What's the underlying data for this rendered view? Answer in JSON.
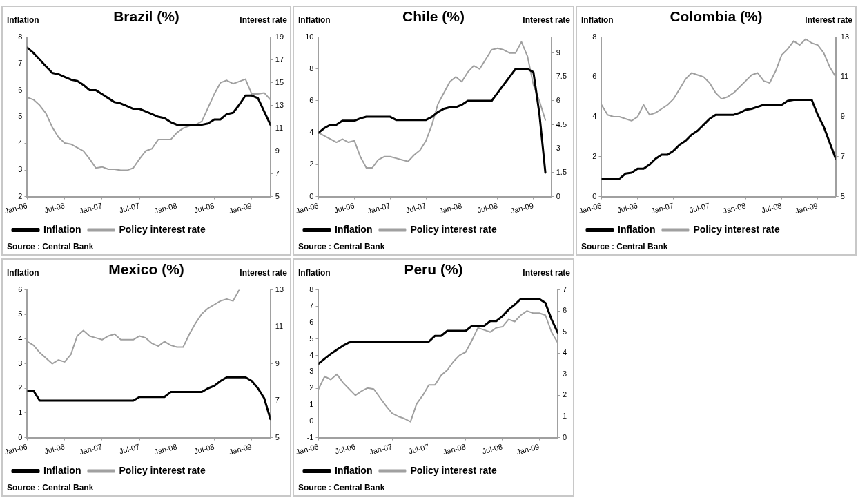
{
  "chart_data": [
    {
      "type": "line",
      "title": "Brazil (%)",
      "ylabel": "Inflation",
      "y2label": "Interest rate",
      "annotations": [
        "Source : Central Bank"
      ],
      "legend": "bottom",
      "marker": "none",
      "line_style": "solid",
      "grid": false,
      "xlim": [
        "2006-01",
        "2009-04"
      ],
      "xticks": [
        {
          "value": "2006-01",
          "label": "Jan-06"
        },
        {
          "value": "2006-07",
          "label": "Jul-06"
        },
        {
          "value": "2007-01",
          "label": "Jan-07"
        },
        {
          "value": "2007-07",
          "label": "Jul-07"
        },
        {
          "value": "2008-01",
          "label": "Jan-08"
        },
        {
          "value": "2008-07",
          "label": "Jul-08"
        },
        {
          "value": "2009-01",
          "label": "Jan-09"
        }
      ],
      "ylim": [
        2,
        8
      ],
      "yticks": [
        2,
        3,
        4,
        5,
        6,
        7,
        8
      ],
      "y2lim": [
        5,
        19
      ],
      "y2ticks": [
        5,
        7,
        9,
        11,
        13,
        15,
        17,
        19
      ],
      "x": [
        "2006-01",
        "2006-02",
        "2006-03",
        "2006-04",
        "2006-05",
        "2006-06",
        "2006-07",
        "2006-08",
        "2006-09",
        "2006-10",
        "2006-11",
        "2006-12",
        "2007-01",
        "2007-02",
        "2007-03",
        "2007-04",
        "2007-05",
        "2007-06",
        "2007-07",
        "2007-08",
        "2007-09",
        "2007-10",
        "2007-11",
        "2007-12",
        "2008-01",
        "2008-02",
        "2008-03",
        "2008-04",
        "2008-05",
        "2008-06",
        "2008-07",
        "2008-08",
        "2008-09",
        "2008-10",
        "2008-11",
        "2008-12",
        "2009-01",
        "2009-02",
        "2009-03",
        "2009-04"
      ],
      "series": [
        {
          "name": "Inflation",
          "color": "#000000",
          "values": [
            7.6,
            7.4,
            7.15,
            6.9,
            6.65,
            6.6,
            6.5,
            6.4,
            6.35,
            6.2,
            6.0,
            6.0,
            5.85,
            5.7,
            5.55,
            5.5,
            5.4,
            5.3,
            5.3,
            5.2,
            5.1,
            5.0,
            4.95,
            4.8,
            4.7,
            4.7,
            4.7,
            4.7,
            4.7,
            4.75,
            4.9,
            4.9,
            5.1,
            5.15,
            5.45,
            5.8,
            5.8,
            5.7,
            5.2,
            4.7
          ]
        },
        {
          "name": "Policy interest rate",
          "color": "#a0a0a0",
          "axis": "y2",
          "values": [
            13.7,
            13.5,
            13.0,
            12.3,
            11.1,
            10.2,
            9.7,
            9.6,
            9.3,
            9.0,
            8.3,
            7.5,
            7.6,
            7.4,
            7.4,
            7.3,
            7.3,
            7.5,
            8.3,
            9.0,
            9.2,
            10.0,
            10.0,
            10.0,
            10.6,
            11.0,
            11.2,
            11.3,
            11.6,
            12.8,
            14.0,
            15.0,
            15.2,
            14.9,
            15.1,
            15.3,
            14.0,
            14.0,
            14.1,
            13.5
          ]
        }
      ]
    },
    {
      "type": "line",
      "title": "Chile (%)",
      "ylabel": "Inflation",
      "y2label": "Interest rate",
      "annotations": [
        "Source : Central Bank"
      ],
      "legend": "bottom",
      "marker": "none",
      "line_style": "solid",
      "grid": false,
      "xlim": [
        "2006-01",
        "2009-04"
      ],
      "xticks": [
        {
          "value": "2006-01",
          "label": "Jan-06"
        },
        {
          "value": "2006-07",
          "label": "Jul-06"
        },
        {
          "value": "2007-01",
          "label": "Jan-07"
        },
        {
          "value": "2007-07",
          "label": "Jul-07"
        },
        {
          "value": "2008-01",
          "label": "Jan-08"
        },
        {
          "value": "2008-07",
          "label": "Jul-08"
        },
        {
          "value": "2009-01",
          "label": "Jan-09"
        }
      ],
      "ylim": [
        0,
        10
      ],
      "yticks": [
        0,
        2,
        4,
        6,
        8,
        10
      ],
      "y2lim": [
        0,
        10
      ],
      "y2ticks": [
        0,
        1.5,
        3,
        4.5,
        6,
        7.5,
        9
      ],
      "x": [
        "2006-01",
        "2006-02",
        "2006-03",
        "2006-04",
        "2006-05",
        "2006-06",
        "2006-07",
        "2006-08",
        "2006-09",
        "2006-10",
        "2006-11",
        "2006-12",
        "2007-01",
        "2007-02",
        "2007-03",
        "2007-04",
        "2007-05",
        "2007-06",
        "2007-07",
        "2007-08",
        "2007-09",
        "2007-10",
        "2007-11",
        "2007-12",
        "2008-01",
        "2008-02",
        "2008-03",
        "2008-04",
        "2008-05",
        "2008-06",
        "2008-07",
        "2008-08",
        "2008-09",
        "2008-10",
        "2008-11",
        "2008-12",
        "2009-01",
        "2009-02",
        "2009-03"
      ],
      "series": [
        {
          "name": "Inflation",
          "color": "#000000",
          "values": [
            4.0,
            4.3,
            4.5,
            4.5,
            4.75,
            4.75,
            4.75,
            4.9,
            5.0,
            5.0,
            5.0,
            5.0,
            5.0,
            4.8,
            4.8,
            4.8,
            4.8,
            4.8,
            4.8,
            5.0,
            5.3,
            5.5,
            5.6,
            5.6,
            5.75,
            6.0,
            6.0,
            6.0,
            6.0,
            6.0,
            6.5,
            7.0,
            7.5,
            8.0,
            8.0,
            8.0,
            7.8,
            5.2,
            1.5
          ]
        },
        {
          "name": "Policy interest rate",
          "color": "#a0a0a0",
          "axis": "y2",
          "values": [
            4.0,
            3.8,
            3.6,
            3.4,
            3.6,
            3.4,
            3.5,
            2.5,
            1.8,
            1.8,
            2.3,
            2.5,
            2.5,
            2.4,
            2.3,
            2.2,
            2.6,
            2.9,
            3.5,
            4.5,
            5.8,
            6.5,
            7.2,
            7.5,
            7.2,
            7.8,
            8.2,
            8.0,
            8.6,
            9.2,
            9.3,
            9.2,
            9.0,
            9.0,
            9.7,
            8.8,
            7.0,
            6.0,
            4.8
          ]
        }
      ]
    },
    {
      "type": "line",
      "title": "Colombia (%)",
      "ylabel": "Inflation",
      "y2label": "Interest rate",
      "annotations": [
        "Source : Central Bank"
      ],
      "legend": "bottom",
      "marker": "none",
      "line_style": "solid",
      "grid": false,
      "xlim": [
        "2006-01",
        "2009-04"
      ],
      "xticks": [
        {
          "value": "2006-01",
          "label": "Jan-06"
        },
        {
          "value": "2006-07",
          "label": "Jul-06"
        },
        {
          "value": "2007-01",
          "label": "Jan-07"
        },
        {
          "value": "2007-07",
          "label": "Jul-07"
        },
        {
          "value": "2008-01",
          "label": "Jan-08"
        },
        {
          "value": "2008-07",
          "label": "Jul-08"
        },
        {
          "value": "2009-01",
          "label": "Jan-09"
        }
      ],
      "ylim": [
        0,
        8
      ],
      "yticks": [
        0,
        2,
        4,
        6,
        8
      ],
      "y2lim": [
        5,
        13
      ],
      "y2ticks": [
        5,
        7,
        9,
        11,
        13
      ],
      "x": [
        "2006-01",
        "2006-02",
        "2006-03",
        "2006-04",
        "2006-05",
        "2006-06",
        "2006-07",
        "2006-08",
        "2006-09",
        "2006-10",
        "2006-11",
        "2006-12",
        "2007-01",
        "2007-02",
        "2007-03",
        "2007-04",
        "2007-05",
        "2007-06",
        "2007-07",
        "2007-08",
        "2007-09",
        "2007-10",
        "2007-11",
        "2007-12",
        "2008-01",
        "2008-02",
        "2008-03",
        "2008-04",
        "2008-05",
        "2008-06",
        "2008-07",
        "2008-08",
        "2008-09",
        "2008-10",
        "2008-11",
        "2008-12",
        "2009-01",
        "2009-02",
        "2009-03",
        "2009-04"
      ],
      "series": [
        {
          "name": "Inflation",
          "color": "#000000",
          "values": [
            0.9,
            0.9,
            0.9,
            0.9,
            1.15,
            1.2,
            1.4,
            1.4,
            1.6,
            1.9,
            2.1,
            2.1,
            2.3,
            2.6,
            2.8,
            3.1,
            3.3,
            3.6,
            3.9,
            4.1,
            4.1,
            4.1,
            4.1,
            4.2,
            4.35,
            4.4,
            4.5,
            4.6,
            4.6,
            4.6,
            4.6,
            4.8,
            4.85,
            4.85,
            4.85,
            4.85,
            4.1,
            3.5,
            2.7,
            1.9
          ]
        },
        {
          "name": "Policy interest rate",
          "color": "#a0a0a0",
          "axis": "y2",
          "values": [
            9.6,
            9.1,
            9.0,
            9.0,
            8.9,
            8.8,
            9.0,
            9.6,
            9.1,
            9.2,
            9.4,
            9.6,
            9.9,
            10.4,
            10.9,
            11.2,
            11.1,
            11.0,
            10.7,
            10.2,
            9.9,
            10.0,
            10.2,
            10.5,
            10.8,
            11.1,
            11.2,
            10.8,
            10.7,
            11.3,
            12.1,
            12.4,
            12.8,
            12.6,
            12.9,
            12.7,
            12.6,
            12.2,
            11.5,
            11.0
          ]
        }
      ]
    },
    {
      "type": "line",
      "title": "Mexico (%)",
      "ylabel": "Inflation",
      "y2label": "Interest rate",
      "annotations": [
        "Source : Central Bank"
      ],
      "legend": "bottom",
      "marker": "none",
      "line_style": "solid",
      "grid": false,
      "xlim": [
        "2006-01",
        "2009-04"
      ],
      "xticks": [
        {
          "value": "2006-01",
          "label": "Jan-06"
        },
        {
          "value": "2006-07",
          "label": "Jul-06"
        },
        {
          "value": "2007-01",
          "label": "Jan-07"
        },
        {
          "value": "2007-07",
          "label": "Jul-07"
        },
        {
          "value": "2008-01",
          "label": "Jan-08"
        },
        {
          "value": "2008-07",
          "label": "Jul-08"
        },
        {
          "value": "2009-01",
          "label": "Jan-09"
        }
      ],
      "ylim": [
        0,
        6
      ],
      "yticks": [
        0,
        1,
        2,
        3,
        4,
        5,
        6
      ],
      "y2lim": [
        5,
        13
      ],
      "y2ticks": [
        5,
        7,
        9,
        11,
        13
      ],
      "x": [
        "2006-01",
        "2006-02",
        "2006-03",
        "2006-04",
        "2006-05",
        "2006-06",
        "2006-07",
        "2006-08",
        "2006-09",
        "2006-10",
        "2006-11",
        "2006-12",
        "2007-01",
        "2007-02",
        "2007-03",
        "2007-04",
        "2007-05",
        "2007-06",
        "2007-07",
        "2007-08",
        "2007-09",
        "2007-10",
        "2007-11",
        "2007-12",
        "2008-01",
        "2008-02",
        "2008-03",
        "2008-04",
        "2008-05",
        "2008-06",
        "2008-07",
        "2008-08",
        "2008-09",
        "2008-10",
        "2008-11",
        "2008-12",
        "2009-01",
        "2009-02",
        "2009-03",
        "2009-04"
      ],
      "series": [
        {
          "name": "Inflation",
          "color": "#000000",
          "values": [
            1.9,
            1.9,
            1.5,
            1.5,
            1.5,
            1.5,
            1.5,
            1.5,
            1.5,
            1.5,
            1.5,
            1.5,
            1.5,
            1.5,
            1.5,
            1.5,
            1.5,
            1.5,
            1.65,
            1.65,
            1.65,
            1.65,
            1.65,
            1.85,
            1.85,
            1.85,
            1.85,
            1.85,
            1.85,
            2.0,
            2.1,
            2.3,
            2.45,
            2.45,
            2.45,
            2.45,
            2.3,
            2.0,
            1.6,
            0.75
          ]
        },
        {
          "name": "Policy interest rate",
          "color": "#a0a0a0",
          "axis": "y2",
          "values": [
            10.2,
            10.0,
            9.6,
            9.3,
            9.0,
            9.2,
            9.1,
            9.5,
            10.5,
            10.8,
            10.5,
            10.4,
            10.3,
            10.5,
            10.6,
            10.3,
            10.3,
            10.3,
            10.5,
            10.4,
            10.1,
            9.95,
            10.2,
            10.0,
            9.9,
            9.9,
            10.6,
            11.2,
            11.7,
            12.0,
            12.2,
            12.4,
            12.5,
            12.4,
            13.0,
            null,
            null,
            null,
            null,
            null
          ]
        }
      ]
    },
    {
      "type": "line",
      "title": "Peru (%)",
      "ylabel": "Inflation",
      "y2label": "Interest rate",
      "annotations": [
        "Source : Central Bank"
      ],
      "legend": "bottom",
      "marker": "none",
      "line_style": "solid",
      "grid": false,
      "xlim": [
        "2006-01",
        "2009-04"
      ],
      "xticks": [
        {
          "value": "2006-01",
          "label": "Jan-06"
        },
        {
          "value": "2006-07",
          "label": "Jul-06"
        },
        {
          "value": "2007-01",
          "label": "Jan-07"
        },
        {
          "value": "2007-07",
          "label": "Jul-07"
        },
        {
          "value": "2008-01",
          "label": "Jan-08"
        },
        {
          "value": "2008-07",
          "label": "Jul-08"
        },
        {
          "value": "2009-01",
          "label": "Jan-09"
        }
      ],
      "ylim": [
        -1,
        8
      ],
      "yticks": [
        -1,
        0,
        1,
        2,
        3,
        4,
        5,
        6,
        7,
        8
      ],
      "y2lim": [
        0,
        7
      ],
      "y2ticks": [
        0,
        1,
        2,
        3,
        4,
        5,
        6,
        7
      ],
      "x": [
        "2006-01",
        "2006-02",
        "2006-03",
        "2006-04",
        "2006-05",
        "2006-06",
        "2006-07",
        "2006-08",
        "2006-09",
        "2006-10",
        "2006-11",
        "2006-12",
        "2007-01",
        "2007-02",
        "2007-03",
        "2007-04",
        "2007-05",
        "2007-06",
        "2007-07",
        "2007-08",
        "2007-09",
        "2007-10",
        "2007-11",
        "2007-12",
        "2008-01",
        "2008-02",
        "2008-03",
        "2008-04",
        "2008-05",
        "2008-06",
        "2008-07",
        "2008-08",
        "2008-09",
        "2008-10",
        "2008-11",
        "2008-12",
        "2009-01",
        "2009-02",
        "2009-03",
        "2009-04"
      ],
      "series": [
        {
          "name": "Inflation",
          "color": "#000000",
          "values": [
            3.5,
            3.8,
            4.1,
            4.35,
            4.6,
            4.8,
            4.85,
            4.85,
            4.85,
            4.85,
            4.85,
            4.85,
            4.85,
            4.85,
            4.85,
            4.85,
            4.85,
            4.85,
            4.85,
            5.2,
            5.2,
            5.5,
            5.5,
            5.5,
            5.5,
            5.8,
            5.8,
            5.8,
            6.1,
            6.1,
            6.4,
            6.8,
            7.1,
            7.45,
            7.45,
            7.45,
            7.45,
            7.2,
            6.2,
            5.4
          ]
        },
        {
          "name": "Policy interest rate",
          "color": "#a0a0a0",
          "axis": "y2",
          "values": [
            2.3,
            2.9,
            2.75,
            3.0,
            2.6,
            2.3,
            2.0,
            2.2,
            2.35,
            2.3,
            1.9,
            1.5,
            1.15,
            1.0,
            0.9,
            0.75,
            1.6,
            2.0,
            2.5,
            2.5,
            2.95,
            3.2,
            3.6,
            3.9,
            4.05,
            4.6,
            5.2,
            5.1,
            5.0,
            5.2,
            5.25,
            5.6,
            5.5,
            5.8,
            6.0,
            5.9,
            5.9,
            5.8,
            5.0,
            4.5
          ]
        }
      ]
    }
  ]
}
